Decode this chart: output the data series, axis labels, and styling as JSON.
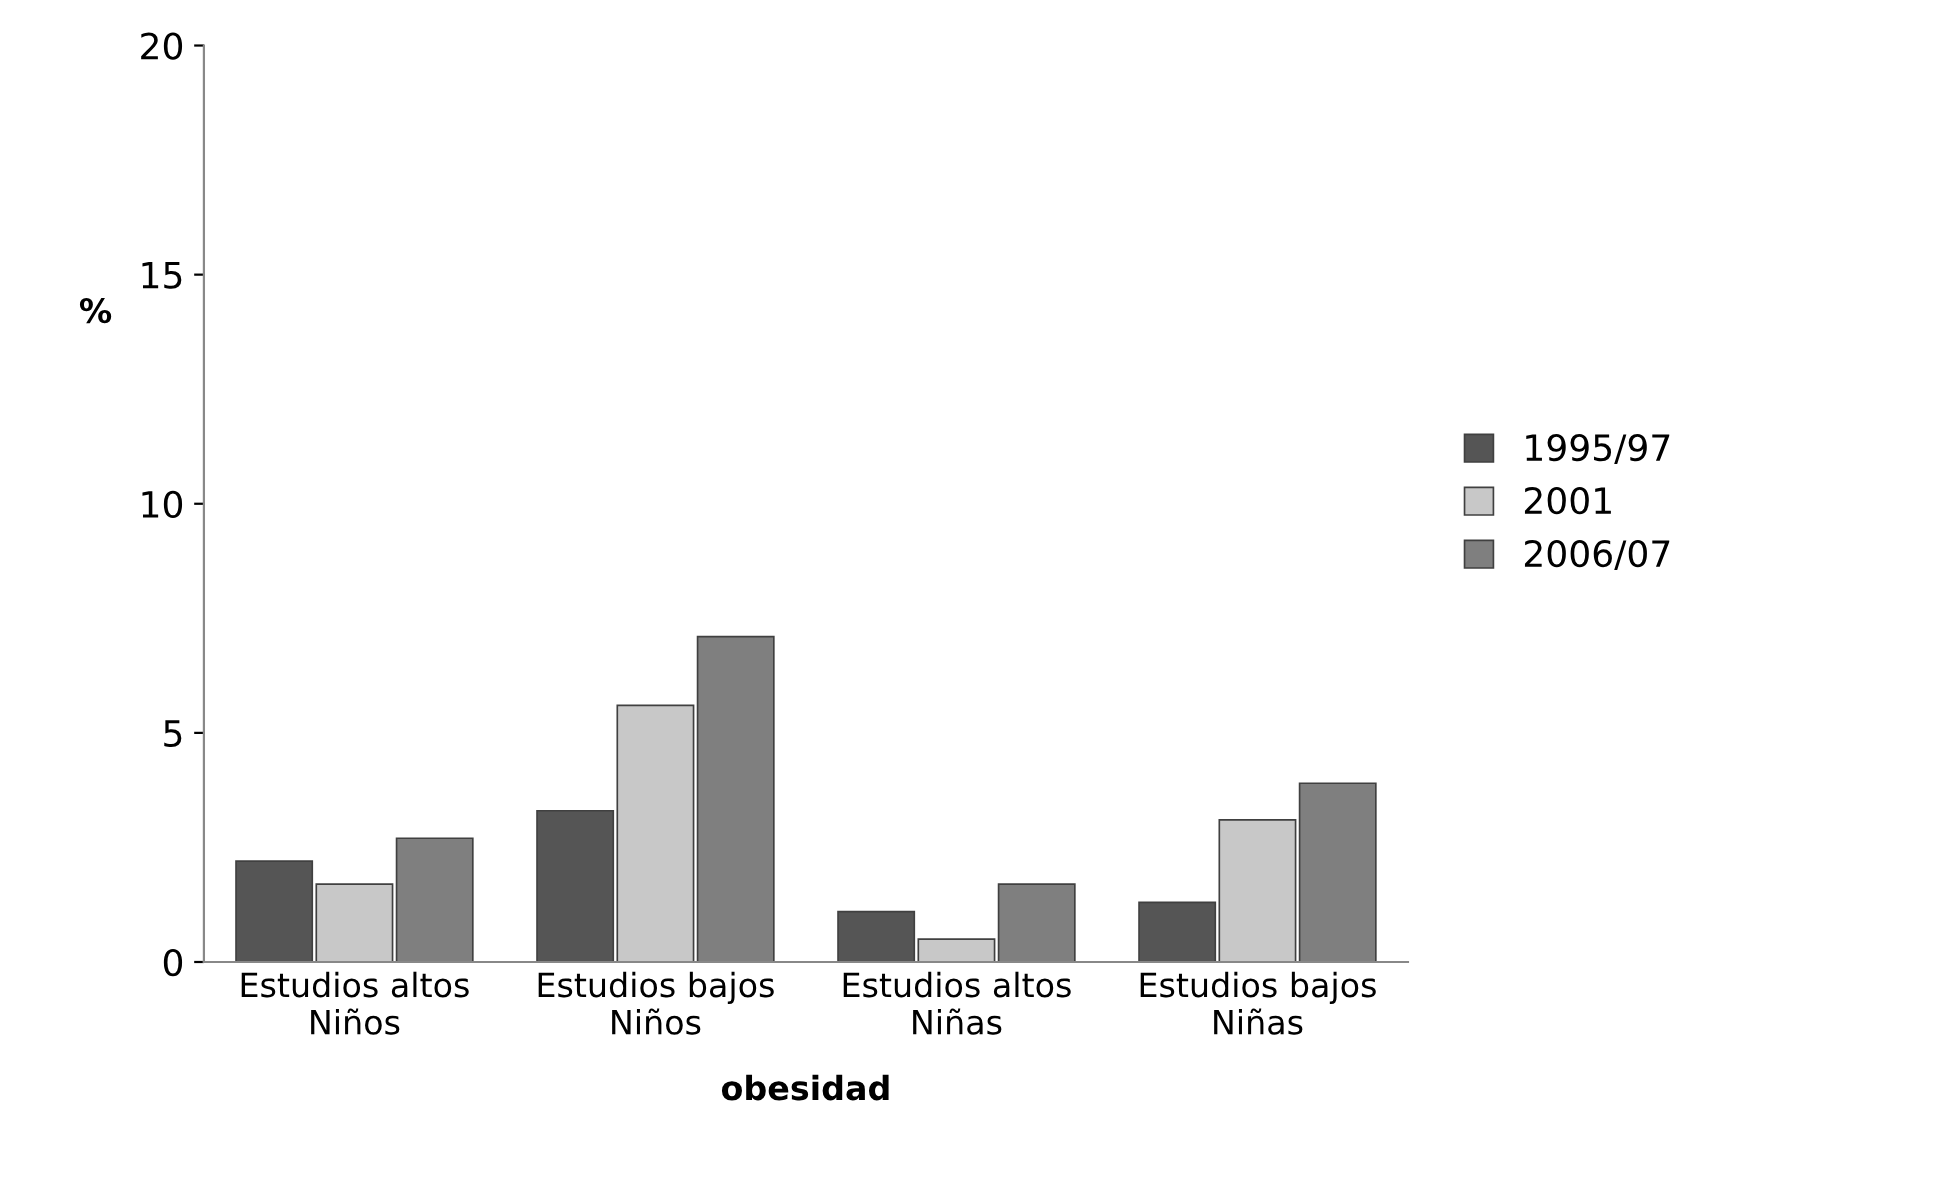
{
  "chart_data": {
    "type": "bar",
    "xlabel": "obesidad",
    "ylabel": "%",
    "categories": [
      "Estudios altos\nNiños",
      "Estudios bajos\nNiños",
      "Estudios altos\nNiñas",
      "Estudios bajos\nNiñas"
    ],
    "series": [
      {
        "name": "1995/97",
        "color": "#555555",
        "values": [
          2.2,
          3.3,
          1.1,
          1.3
        ]
      },
      {
        "name": "2001",
        "color": "#c8c8c8",
        "values": [
          1.7,
          5.6,
          0.5,
          3.1
        ]
      },
      {
        "name": "2006/07",
        "color": "#7f7f7f",
        "values": [
          2.7,
          7.1,
          1.7,
          3.9
        ]
      }
    ],
    "ylim": [
      0,
      20
    ],
    "yticks": [
      0,
      5,
      10,
      15,
      20
    ],
    "grid": false,
    "legend": "right"
  }
}
